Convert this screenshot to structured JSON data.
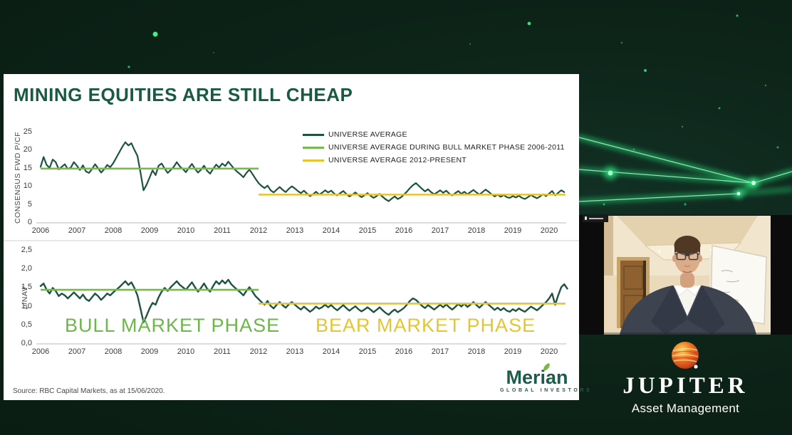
{
  "slide": {
    "title": "MINING EQUITIES ARE STILL CHEAP",
    "source": "Source: RBC Capital Markets, as at 15/06/2020.",
    "merian": {
      "name": "Merian",
      "subtitle": "GLOBAL INVESTORS"
    }
  },
  "jupiter": {
    "name": "JUPITER",
    "subtitle": "Asset Management"
  },
  "colors": {
    "background": "#0d2419",
    "accent_green": "#2ee27a",
    "title_green": "#1a5a44",
    "series_green": "#1e5340",
    "bull_green": "#77b94c",
    "bear_yellow": "#e5c431"
  },
  "chart_data": [
    {
      "type": "line",
      "ylabel": "CONSENSUS FWD P/CF",
      "xlabel": "",
      "ylim": [
        0,
        25
      ],
      "yticks": [
        "0",
        "5",
        "10",
        "15",
        "20",
        "25"
      ],
      "ytick_values": [
        0,
        5,
        10,
        15,
        20,
        25
      ],
      "xticks": [
        "2006",
        "2007",
        "2008",
        "2009",
        "2010",
        "2011",
        "2012",
        "2013",
        "2014",
        "2015",
        "2016",
        "2017",
        "2018",
        "2019",
        "2020"
      ],
      "grid": false,
      "legend_position": "top-right",
      "series": [
        {
          "name": "UNIVERSE AVERAGE",
          "color": "#1e5340",
          "x_start": 2006.0,
          "x_step": 0.08333,
          "values": [
            15.5,
            18.2,
            16.0,
            15.2,
            17.5,
            16.8,
            14.8,
            15.5,
            16.2,
            14.9,
            15.3,
            16.8,
            15.8,
            14.6,
            15.9,
            14.2,
            13.8,
            14.9,
            16.2,
            15.1,
            13.9,
            14.8,
            16.0,
            15.4,
            16.5,
            18.0,
            19.5,
            21.0,
            22.3,
            21.4,
            22.0,
            20.2,
            18.5,
            14.0,
            9.0,
            10.5,
            12.5,
            14.5,
            13.2,
            15.8,
            16.4,
            15.0,
            13.8,
            14.6,
            15.5,
            16.8,
            15.6,
            14.9,
            14.0,
            15.2,
            16.3,
            15.0,
            13.9,
            14.7,
            15.8,
            14.4,
            13.6,
            14.9,
            16.1,
            15.3,
            16.4,
            15.7,
            16.9,
            15.9,
            14.9,
            14.1,
            13.4,
            12.6,
            13.8,
            14.7,
            13.5,
            12.2,
            11.0,
            10.2,
            9.6,
            10.3,
            9.0,
            8.4,
            9.2,
            9.9,
            9.1,
            8.5,
            9.4,
            10.1,
            9.5,
            8.8,
            8.2,
            8.9,
            8.1,
            7.4,
            7.9,
            8.6,
            7.8,
            8.3,
            9.0,
            8.4,
            8.9,
            8.1,
            7.6,
            8.2,
            8.8,
            8.0,
            7.3,
            7.8,
            8.4,
            7.7,
            7.1,
            7.6,
            8.2,
            7.5,
            6.9,
            7.4,
            8.0,
            7.2,
            6.5,
            6.0,
            6.7,
            7.3,
            6.6,
            7.0,
            7.8,
            8.6,
            9.6,
            10.4,
            11.0,
            10.2,
            9.4,
            8.7,
            9.3,
            8.5,
            7.9,
            8.4,
            9.0,
            8.3,
            8.9,
            8.1,
            7.6,
            8.2,
            8.8,
            8.0,
            8.6,
            7.9,
            8.5,
            9.1,
            8.4,
            7.8,
            8.5,
            9.2,
            8.6,
            7.9,
            7.3,
            7.8,
            7.2,
            7.7,
            7.1,
            6.9,
            7.4,
            7.0,
            7.5,
            6.9,
            6.6,
            7.1,
            7.7,
            7.2,
            6.8,
            7.3,
            7.9,
            7.4,
            8.1,
            8.8,
            7.6,
            8.3,
            9.0,
            8.5
          ]
        },
        {
          "name": "UNIVERSE AVERAGE DURING BULL MARKET PHASE 2006-2011",
          "color": "#77b94c",
          "x": [
            2006.0,
            2012.0
          ],
          "y": [
            15.0,
            15.0
          ]
        },
        {
          "name": "UNIVERSE AVERAGE 2012-PRESENT",
          "color": "#e5c431",
          "x": [
            2012.0,
            2020.45
          ],
          "y": [
            7.8,
            7.8
          ]
        }
      ]
    },
    {
      "type": "line",
      "ylabel": "p/NAV",
      "xlabel": "",
      "ylim": [
        0,
        2.5
      ],
      "yticks": [
        "0,0",
        "0,5",
        "1,0",
        "1,5",
        "2,0",
        "2,5"
      ],
      "ytick_values": [
        0,
        0.5,
        1.0,
        1.5,
        2.0,
        2.5
      ],
      "xticks": [
        "2006",
        "2007",
        "2008",
        "2009",
        "2010",
        "2011",
        "2012",
        "2013",
        "2014",
        "2015",
        "2016",
        "2017",
        "2018",
        "2019",
        "2020"
      ],
      "grid": false,
      "annotations": [
        {
          "text": "BULL MARKET PHASE",
          "color": "#6db64c"
        },
        {
          "text": "BEAR MARKET PHASE",
          "color": "#e3c633"
        }
      ],
      "series": [
        {
          "name": "UNIVERSE AVERAGE",
          "color": "#1e5340",
          "x_start": 2006.0,
          "x_step": 0.08333,
          "values": [
            1.55,
            1.62,
            1.45,
            1.35,
            1.5,
            1.42,
            1.28,
            1.35,
            1.3,
            1.22,
            1.3,
            1.38,
            1.3,
            1.22,
            1.32,
            1.2,
            1.15,
            1.25,
            1.35,
            1.28,
            1.18,
            1.26,
            1.35,
            1.3,
            1.38,
            1.45,
            1.52,
            1.6,
            1.68,
            1.58,
            1.65,
            1.5,
            1.3,
            0.95,
            0.58,
            0.75,
            0.95,
            1.1,
            1.05,
            1.25,
            1.4,
            1.5,
            1.42,
            1.52,
            1.6,
            1.68,
            1.58,
            1.52,
            1.45,
            1.55,
            1.65,
            1.52,
            1.4,
            1.5,
            1.62,
            1.48,
            1.4,
            1.55,
            1.68,
            1.6,
            1.7,
            1.62,
            1.72,
            1.6,
            1.52,
            1.45,
            1.38,
            1.3,
            1.42,
            1.52,
            1.4,
            1.28,
            1.2,
            1.12,
            1.05,
            1.15,
            1.02,
            0.95,
            1.05,
            1.12,
            1.03,
            0.97,
            1.06,
            1.12,
            1.05,
            0.98,
            0.92,
            1.0,
            0.93,
            0.86,
            0.92,
            1.0,
            0.94,
            0.98,
            1.05,
            0.98,
            1.04,
            0.96,
            0.9,
            0.97,
            1.04,
            0.96,
            0.89,
            0.95,
            1.01,
            0.93,
            0.87,
            0.92,
            0.98,
            0.92,
            0.85,
            0.91,
            0.98,
            0.9,
            0.83,
            0.78,
            0.86,
            0.92,
            0.85,
            0.9,
            0.96,
            1.05,
            1.15,
            1.22,
            1.18,
            1.1,
            1.02,
            0.96,
            1.04,
            0.98,
            0.92,
            0.98,
            1.05,
            0.98,
            1.06,
            0.98,
            0.92,
            0.99,
            1.07,
            1.0,
            1.08,
            0.99,
            1.05,
            1.12,
            1.04,
            0.97,
            1.05,
            1.12,
            1.05,
            0.98,
            0.91,
            0.97,
            0.9,
            0.96,
            0.89,
            0.86,
            0.93,
            0.88,
            0.95,
            0.9,
            0.86,
            0.93,
            1.0,
            0.95,
            0.9,
            0.97,
            1.05,
            1.12,
            1.22,
            1.35,
            1.05,
            1.3,
            1.52,
            1.6,
            1.48
          ]
        },
        {
          "name": "UNIVERSE AVERAGE DURING BULL MARKET PHASE 2006-2011",
          "color": "#77b94c",
          "x": [
            2006.0,
            2012.0
          ],
          "y": [
            1.45,
            1.45
          ]
        },
        {
          "name": "UNIVERSE AVERAGE 2012-PRESENT",
          "color": "#e5c431",
          "x": [
            2012.0,
            2020.45
          ],
          "y": [
            1.08,
            1.08
          ]
        }
      ]
    }
  ]
}
